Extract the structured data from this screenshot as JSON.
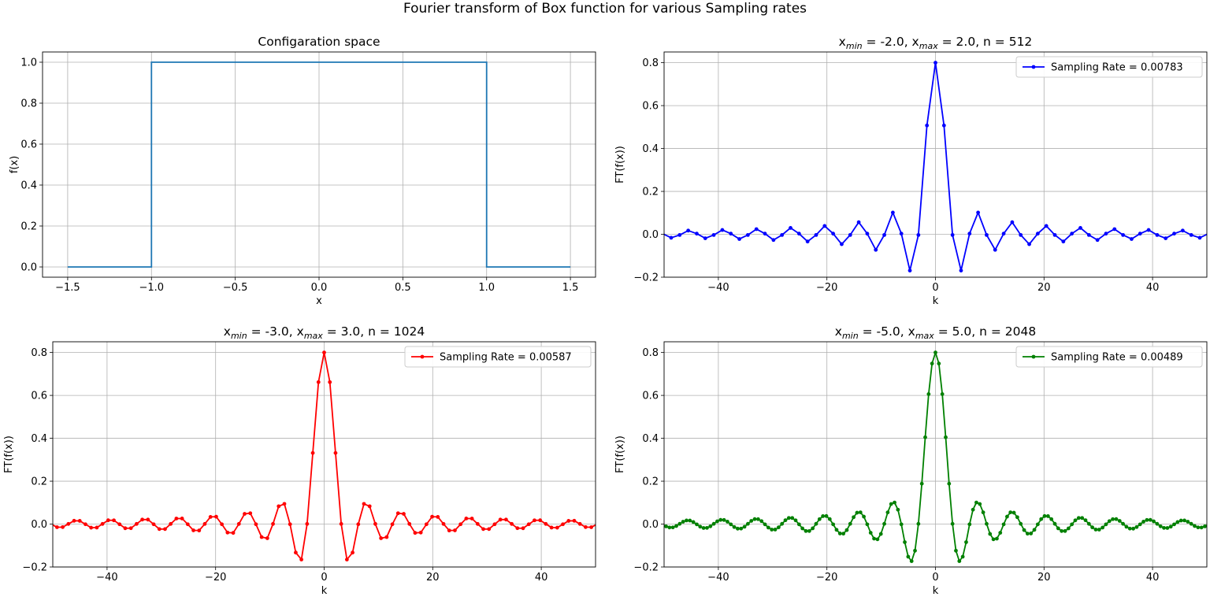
{
  "figure": {
    "suptitle": "Fourier transform of Box function for various Sampling rates"
  },
  "chart_data": [
    {
      "type": "line",
      "title": "Configaration space",
      "xlabel": "x",
      "ylabel": "f(x)",
      "xlim": [
        -1.65,
        1.65
      ],
      "ylim": [
        -0.05,
        1.05
      ],
      "xticks": [
        -1.5,
        -1.0,
        -0.5,
        0.0,
        0.5,
        1.0,
        1.5
      ],
      "xtick_labels": [
        "−1.5",
        "−1.0",
        "−0.5",
        "0.0",
        "0.5",
        "1.0",
        "1.5"
      ],
      "yticks": [
        0.0,
        0.2,
        0.4,
        0.6,
        0.8,
        1.0
      ],
      "ytick_labels": [
        "0.0",
        "0.2",
        "0.4",
        "0.6",
        "0.8",
        "1.0"
      ],
      "grid": true,
      "color": "#1f77b4",
      "series": [
        {
          "x": [
            -1.5,
            -1.0,
            -1.0,
            1.0,
            1.0,
            1.5
          ],
          "y": [
            0,
            0,
            1,
            1,
            0,
            0
          ]
        }
      ]
    },
    {
      "type": "line",
      "title": {
        "pre": "x",
        "sub1": "min",
        "mid": " = -2.0, x",
        "sub2": "max",
        "post": " = 2.0, n = 512"
      },
      "xlabel": "k",
      "ylabel": "FT(f(x))",
      "xlim": [
        -50,
        50
      ],
      "ylim": [
        -0.2,
        0.85
      ],
      "xticks": [
        -40,
        -20,
        0,
        20,
        40
      ],
      "xtick_labels": [
        "−40",
        "−20",
        "0",
        "20",
        "40"
      ],
      "yticks": [
        -0.2,
        0.0,
        0.2,
        0.4,
        0.6,
        0.8
      ],
      "ytick_labels": [
        "−0.2",
        "0.0",
        "0.2",
        "0.4",
        "0.6",
        "0.8"
      ],
      "grid": true,
      "legend_position": "top-right",
      "color": "#0000ff",
      "series": [
        {
          "name": "Sampling Rate = 0.00783",
          "L": 4.0,
          "n": 512,
          "xmin": -2.0,
          "amp": 0.8
        }
      ]
    },
    {
      "type": "line",
      "title": {
        "pre": "x",
        "sub1": "min",
        "mid": " = -3.0, x",
        "sub2": "max",
        "post": " = 3.0, n = 1024"
      },
      "xlabel": "k",
      "ylabel": "FT(f(x))",
      "xlim": [
        -50,
        50
      ],
      "ylim": [
        -0.2,
        0.85
      ],
      "xticks": [
        -40,
        -20,
        0,
        20,
        40
      ],
      "xtick_labels": [
        "−40",
        "−20",
        "0",
        "20",
        "40"
      ],
      "yticks": [
        -0.2,
        0.0,
        0.2,
        0.4,
        0.6,
        0.8
      ],
      "ytick_labels": [
        "−0.2",
        "0.0",
        "0.2",
        "0.4",
        "0.6",
        "0.8"
      ],
      "grid": true,
      "legend_position": "top-right",
      "color": "#ff0000",
      "series": [
        {
          "name": "Sampling Rate = 0.00587",
          "L": 6.0,
          "n": 1024,
          "xmin": -3.0,
          "amp": 0.8
        }
      ]
    },
    {
      "type": "line",
      "title": {
        "pre": "x",
        "sub1": "min",
        "mid": " = -5.0, x",
        "sub2": "max",
        "post": " = 5.0, n = 2048"
      },
      "xlabel": "k",
      "ylabel": "FT(f(x))",
      "xlim": [
        -50,
        50
      ],
      "ylim": [
        -0.2,
        0.85
      ],
      "xticks": [
        -40,
        -20,
        0,
        20,
        40
      ],
      "xtick_labels": [
        "−40",
        "−20",
        "0",
        "20",
        "40"
      ],
      "yticks": [
        -0.2,
        0.0,
        0.2,
        0.4,
        0.6,
        0.8
      ],
      "ytick_labels": [
        "−0.2",
        "0.0",
        "0.2",
        "0.4",
        "0.6",
        "0.8"
      ],
      "grid": true,
      "legend_position": "top-right",
      "color": "#008000",
      "series": [
        {
          "name": "Sampling Rate = 0.00489",
          "L": 10.0,
          "n": 2048,
          "xmin": -5.0,
          "amp": 0.8
        }
      ]
    }
  ]
}
